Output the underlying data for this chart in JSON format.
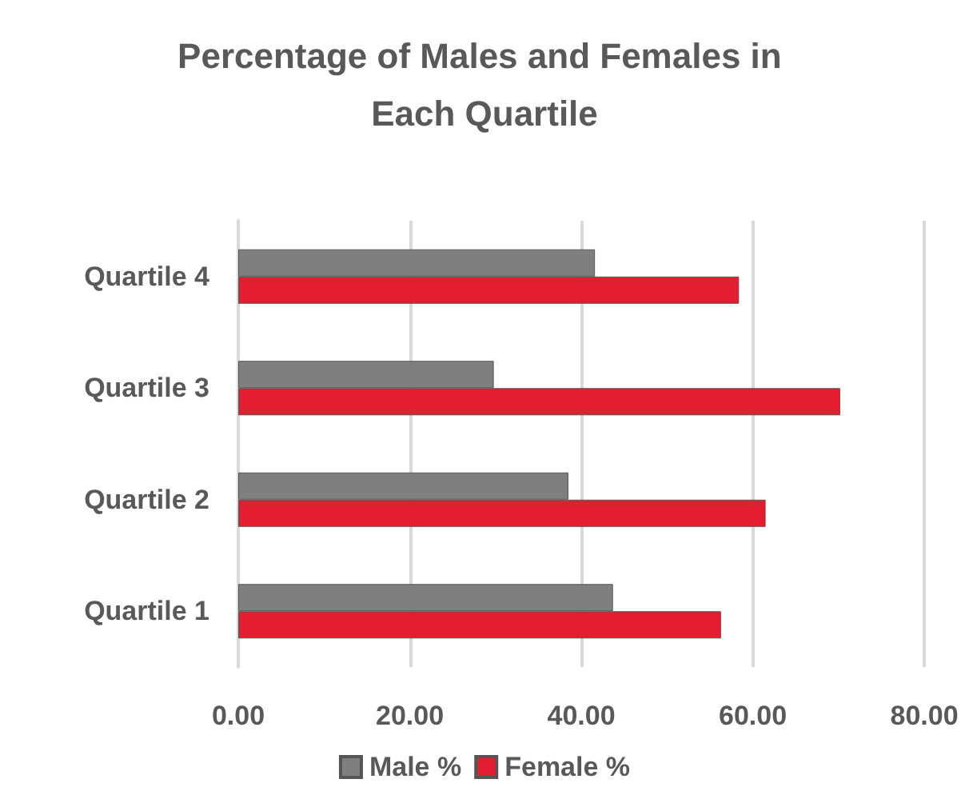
{
  "chart_data": {
    "type": "bar",
    "orientation": "horizontal",
    "title": "Percentage of Males and Females in Each Quartile",
    "categories": [
      "Quartile 4",
      "Quartile 3",
      "Quartile 2",
      "Quartile 1"
    ],
    "series": [
      {
        "name": "Male %",
        "color": "#7f7f7f",
        "values": [
          41.6,
          29.8,
          38.5,
          43.7
        ]
      },
      {
        "name": "Female %",
        "color": "#e31e2f",
        "values": [
          58.4,
          70.2,
          61.5,
          56.3
        ]
      }
    ],
    "xlim": [
      0,
      80
    ],
    "xticks": [
      {
        "value": 0,
        "label": "0.00"
      },
      {
        "value": 20,
        "label": "20.00"
      },
      {
        "value": 40,
        "label": "40.00"
      },
      {
        "value": 60,
        "label": "60.00"
      },
      {
        "value": 80,
        "label": "80.00"
      }
    ],
    "grid": "x",
    "legend": "bottom"
  }
}
